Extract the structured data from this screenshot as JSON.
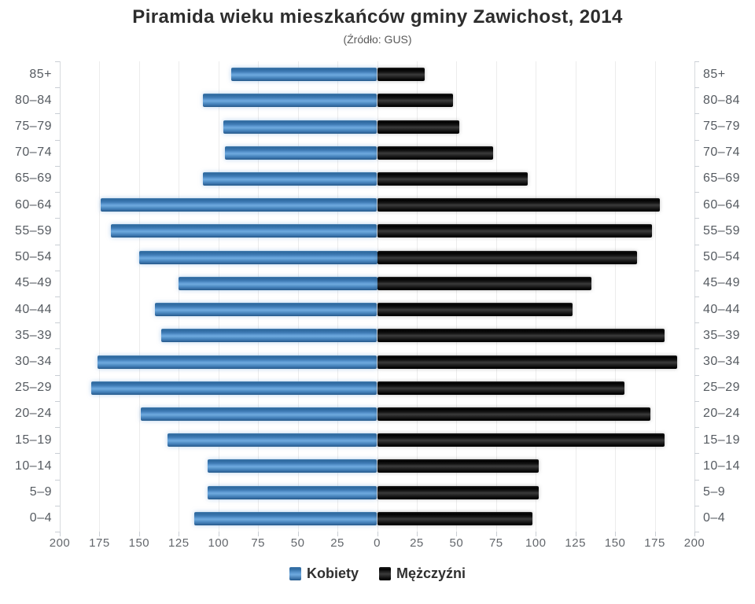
{
  "title": "Piramida wieku mieszkańców gminy Zawichost, 2014",
  "subtitle": "(Źródło: GUS)",
  "legend": {
    "female": "Kobiety",
    "male": "Mężczyźni"
  },
  "colors": {
    "female_bar": "#3f7cb6",
    "female_highlight": "#6ea9dd",
    "male_bar": "#141414",
    "male_highlight": "#3b3b3b",
    "gridline": "#ececec",
    "axis_line": "#d7dade",
    "tick": "#c9ced4",
    "age_label_text": "#565b61",
    "x_label_text": "#63676c",
    "title_text": "#2d2d2d"
  },
  "chart_data": {
    "type": "bar",
    "subtype": "population-pyramid-horizontal",
    "title": "Piramida wieku mieszkańców gminy Zawichost, 2014",
    "subtitle": "(Źródło: GUS)",
    "categories": [
      "85+",
      "80–84",
      "75–79",
      "70–74",
      "65–69",
      "60–64",
      "55–59",
      "50–54",
      "45–49",
      "40–44",
      "35–39",
      "30–34",
      "25–29",
      "20–24",
      "15–19",
      "10–14",
      "5–9",
      "0–4"
    ],
    "series": [
      {
        "name": "Kobiety",
        "side": "left",
        "color": "#3f7cb6",
        "values": [
          92,
          110,
          97,
          96,
          110,
          174,
          168,
          150,
          125,
          140,
          136,
          176,
          180,
          149,
          132,
          107,
          107,
          115
        ]
      },
      {
        "name": "Mężczyźni",
        "side": "right",
        "color": "#141414",
        "values": [
          30,
          48,
          52,
          73,
          95,
          178,
          173,
          164,
          135,
          123,
          181,
          189,
          156,
          172,
          181,
          102,
          102,
          98
        ]
      }
    ],
    "x_axis": {
      "tick_labels": [
        200,
        175,
        150,
        125,
        100,
        75,
        50,
        25,
        0,
        25,
        50,
        75,
        100,
        125,
        150,
        175,
        200
      ],
      "max_each_side": 200,
      "tick_step": 25
    },
    "grid": true,
    "legend_position": "bottom"
  }
}
